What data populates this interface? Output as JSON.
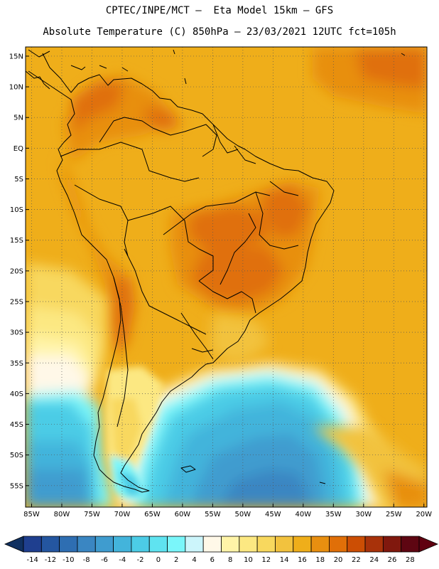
{
  "header": {
    "line1": "CPTEC/INPE/MCT –  Eta Model 15km – GFS",
    "line2": "Absolute Temperature (C) 850hPa – 23/03/2021 12UTC fct=105h"
  },
  "map": {
    "variable": "Absolute Temperature",
    "units": "C",
    "level": "850hPa",
    "extent": {
      "lon_min": -86,
      "lon_max": -19.5,
      "lat_min": -58.5,
      "lat_max": 16.5
    },
    "lat_ticks": [
      "15N",
      "10N",
      "5N",
      "EQ",
      "5S",
      "10S",
      "15S",
      "20S",
      "25S",
      "30S",
      "35S",
      "40S",
      "45S",
      "50S",
      "55S"
    ],
    "lat_values": [
      15,
      10,
      5,
      0,
      -5,
      -10,
      -15,
      -20,
      -25,
      -30,
      -35,
      -40,
      -45,
      -50,
      -55
    ],
    "lon_ticks": [
      "85W",
      "80W",
      "75W",
      "70W",
      "65W",
      "60W",
      "55W",
      "50W",
      "45W",
      "40W",
      "35W",
      "30W",
      "25W",
      "20W"
    ],
    "lon_values": [
      -85,
      -80,
      -75,
      -70,
      -65,
      -60,
      -55,
      -50,
      -45,
      -40,
      -35,
      -30,
      -25,
      -20
    ]
  },
  "colorbar": {
    "labels": [
      "-14",
      "-12",
      "-10",
      "-8",
      "-6",
      "-4",
      "-2",
      "0",
      "2",
      "4",
      "6",
      "8",
      "10",
      "12",
      "14",
      "16",
      "18",
      "20",
      "22",
      "24",
      "26",
      "28"
    ],
    "colors": [
      "#1f3f8f",
      "#2456a0",
      "#2e6eb2",
      "#3a86c2",
      "#3f9ccf",
      "#43b4db",
      "#4ccce6",
      "#5fe3f0",
      "#7af6fa",
      "#ccf5fb",
      "#fff8e8",
      "#fff4a8",
      "#fce882",
      "#f8d85e",
      "#f2c23e",
      "#efae1a",
      "#e88f10",
      "#e06f08",
      "#cc4e04",
      "#a8320a",
      "#80180e",
      "#5e0612"
    ],
    "low_end": "#103060",
    "high_end": "#600010"
  }
}
